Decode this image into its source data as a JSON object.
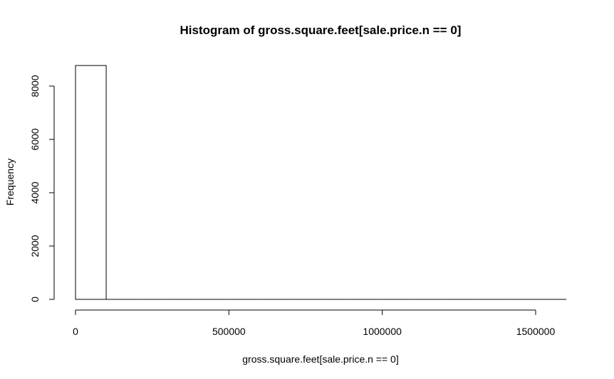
{
  "chart_data": {
    "type": "bar",
    "title": "Histogram of gross.square.feet[sale.price.n == 0]",
    "xlabel": "gross.square.feet[sale.price.n == 0]",
    "ylabel": "Frequency",
    "xlim": [
      0,
      1600000
    ],
    "ylim": [
      0,
      8800
    ],
    "x_ticks": [
      0,
      500000,
      1000000,
      1500000
    ],
    "x_tick_labels": [
      "0",
      "500000",
      "1000000",
      "1500000"
    ],
    "y_ticks": [
      0,
      2000,
      4000,
      6000,
      8000
    ],
    "y_tick_labels": [
      "0",
      "2000",
      "4000",
      "6000",
      "8000"
    ],
    "bins": [
      {
        "start": 0,
        "end": 100000,
        "count": 8770
      },
      {
        "start": 100000,
        "end": 200000,
        "count": 0
      },
      {
        "start": 200000,
        "end": 300000,
        "count": 0
      },
      {
        "start": 300000,
        "end": 400000,
        "count": 0
      },
      {
        "start": 400000,
        "end": 500000,
        "count": 0
      },
      {
        "start": 500000,
        "end": 600000,
        "count": 0
      },
      {
        "start": 600000,
        "end": 700000,
        "count": 0
      },
      {
        "start": 700000,
        "end": 800000,
        "count": 0
      },
      {
        "start": 800000,
        "end": 900000,
        "count": 0
      },
      {
        "start": 900000,
        "end": 1000000,
        "count": 0
      },
      {
        "start": 1000000,
        "end": 1100000,
        "count": 0
      },
      {
        "start": 1100000,
        "end": 1200000,
        "count": 0
      },
      {
        "start": 1200000,
        "end": 1300000,
        "count": 0
      },
      {
        "start": 1300000,
        "end": 1400000,
        "count": 0
      },
      {
        "start": 1400000,
        "end": 1500000,
        "count": 0
      },
      {
        "start": 1500000,
        "end": 1600000,
        "count": 1
      }
    ],
    "bar_fill": "#ffffff",
    "bar_stroke": "#000000",
    "grid": false,
    "legend": "none"
  }
}
